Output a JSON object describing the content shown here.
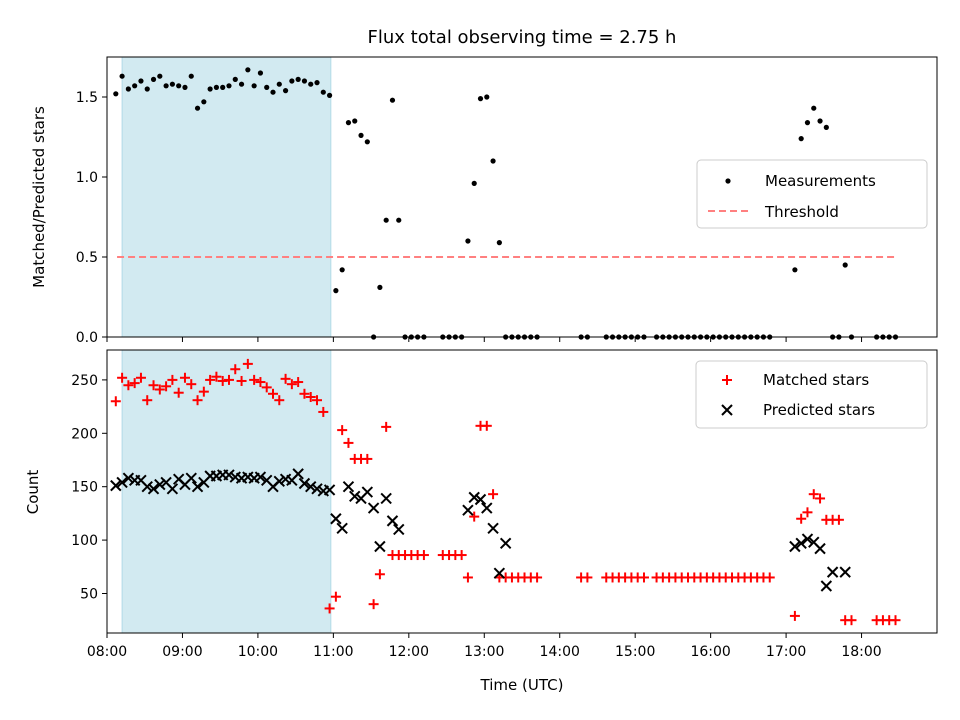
{
  "chart_data": [
    {
      "type": "scatter",
      "title": "Flux total observing time = 2.75 h",
      "ylabel": "Matched/Predicted stars",
      "xlabel": "",
      "xlim": [
        "08:00",
        "19:00"
      ],
      "ylim": [
        0,
        1.75
      ],
      "yticks": [
        "0.0",
        "0.5",
        "1.0",
        "1.5"
      ],
      "grid": false,
      "legend": "center-right",
      "shaded_span": {
        "start": "08:12",
        "end": "10:58",
        "color": "#add8e6"
      },
      "threshold": {
        "name": "Threshold",
        "value": 0.5,
        "start": "08:08",
        "end": "18:28",
        "color": "#ff8080"
      },
      "series": [
        {
          "name": "Measurements",
          "color": "#000000",
          "marker": "dot",
          "x": [
            "08:07",
            "08:12",
            "08:17",
            "08:22",
            "08:27",
            "08:32",
            "08:37",
            "08:42",
            "08:47",
            "08:52",
            "08:57",
            "09:02",
            "09:07",
            "09:12",
            "09:17",
            "09:22",
            "09:27",
            "09:32",
            "09:37",
            "09:42",
            "09:47",
            "09:52",
            "09:57",
            "10:02",
            "10:07",
            "10:12",
            "10:17",
            "10:22",
            "10:27",
            "10:32",
            "10:37",
            "10:42",
            "10:47",
            "10:52",
            "10:57",
            "11:02",
            "11:07",
            "11:12",
            "11:17",
            "11:22",
            "11:27",
            "11:32",
            "11:37",
            "11:42",
            "11:47",
            "11:52",
            "11:57",
            "12:02",
            "12:07",
            "12:12",
            "12:27",
            "12:32",
            "12:37",
            "12:42",
            "12:47",
            "12:52",
            "12:57",
            "13:02",
            "13:07",
            "13:12",
            "13:17",
            "13:22",
            "13:27",
            "13:32",
            "13:37",
            "13:42",
            "14:17",
            "14:22",
            "14:37",
            "14:42",
            "14:47",
            "14:52",
            "14:57",
            "15:02",
            "15:07",
            "15:17",
            "15:22",
            "15:27",
            "15:32",
            "15:37",
            "15:42",
            "15:47",
            "15:52",
            "15:57",
            "16:02",
            "16:07",
            "16:12",
            "16:17",
            "16:22",
            "16:27",
            "16:32",
            "16:37",
            "16:42",
            "16:47",
            "17:07",
            "17:12",
            "17:17",
            "17:22",
            "17:27",
            "17:32",
            "17:37",
            "17:42",
            "17:47",
            "17:52",
            "18:12",
            "18:17",
            "18:22",
            "18:27"
          ],
          "y": [
            1.52,
            1.63,
            1.55,
            1.57,
            1.6,
            1.55,
            1.61,
            1.63,
            1.57,
            1.58,
            1.57,
            1.56,
            1.63,
            1.43,
            1.47,
            1.55,
            1.56,
            1.56,
            1.57,
            1.61,
            1.58,
            1.67,
            1.57,
            1.65,
            1.56,
            1.53,
            1.58,
            1.54,
            1.6,
            1.61,
            1.6,
            1.58,
            1.59,
            1.53,
            1.51,
            0.29,
            0.42,
            1.34,
            1.35,
            1.26,
            1.22,
            0.0,
            0.31,
            0.73,
            1.48,
            0.73,
            0.0,
            0.0,
            0.0,
            0.0,
            0.0,
            0.0,
            0.0,
            0.0,
            0.6,
            0.96,
            1.49,
            1.5,
            1.1,
            0.59,
            0.0,
            0.0,
            0.0,
            0.0,
            0.0,
            0.0,
            0.0,
            0.0,
            0.0,
            0.0,
            0.0,
            0.0,
            0.0,
            0.0,
            0.0,
            0.0,
            0.0,
            0.0,
            0.0,
            0.0,
            0.0,
            0.0,
            0.0,
            0.0,
            0.0,
            0.0,
            0.0,
            0.0,
            0.0,
            0.0,
            0.0,
            0.0,
            0.0,
            0.0,
            0.42,
            1.24,
            1.34,
            1.43,
            1.35,
            1.31,
            0.0,
            0.0,
            0.45,
            0.0,
            0.0,
            0.0,
            0.0,
            0.0
          ]
        }
      ]
    },
    {
      "type": "scatter",
      "title": "",
      "ylabel": "Count",
      "xlabel": "Time (UTC)",
      "xlim": [
        "08:00",
        "19:00"
      ],
      "ylim": [
        13,
        278
      ],
      "xticks": [
        "08:00",
        "09:00",
        "10:00",
        "11:00",
        "12:00",
        "13:00",
        "14:00",
        "15:00",
        "16:00",
        "17:00",
        "18:00"
      ],
      "yticks": [
        "50",
        "100",
        "150",
        "200",
        "250"
      ],
      "grid": false,
      "legend": "top-right",
      "shaded_span": {
        "start": "08:12",
        "end": "10:58",
        "color": "#add8e6"
      },
      "series": [
        {
          "name": "Matched stars",
          "color": "#ff0000",
          "marker": "plus",
          "x": [
            "08:07",
            "08:12",
            "08:17",
            "08:22",
            "08:27",
            "08:32",
            "08:37",
            "08:42",
            "08:47",
            "08:52",
            "08:57",
            "09:02",
            "09:07",
            "09:12",
            "09:17",
            "09:22",
            "09:27",
            "09:32",
            "09:37",
            "09:42",
            "09:47",
            "09:52",
            "09:57",
            "10:02",
            "10:07",
            "10:12",
            "10:17",
            "10:22",
            "10:27",
            "10:32",
            "10:37",
            "10:42",
            "10:47",
            "10:52",
            "10:57",
            "11:02",
            "11:07",
            "11:12",
            "11:17",
            "11:22",
            "11:27",
            "11:32",
            "11:37",
            "11:42",
            "11:47",
            "11:52",
            "11:57",
            "12:02",
            "12:07",
            "12:12",
            "12:27",
            "12:32",
            "12:37",
            "12:42",
            "12:47",
            "12:52",
            "12:57",
            "13:02",
            "13:07",
            "13:12",
            "13:17",
            "13:22",
            "13:27",
            "13:32",
            "13:37",
            "13:42",
            "14:17",
            "14:22",
            "14:37",
            "14:42",
            "14:47",
            "14:52",
            "14:57",
            "15:02",
            "15:07",
            "15:17",
            "15:22",
            "15:27",
            "15:32",
            "15:37",
            "15:42",
            "15:47",
            "15:52",
            "15:57",
            "16:02",
            "16:07",
            "16:12",
            "16:17",
            "16:22",
            "16:27",
            "16:32",
            "16:37",
            "16:42",
            "16:47",
            "17:07",
            "17:12",
            "17:17",
            "17:22",
            "17:27",
            "17:32",
            "17:37",
            "17:42",
            "17:47",
            "17:52",
            "18:12",
            "18:17",
            "18:22",
            "18:27"
          ],
          "y": [
            230,
            252,
            245,
            247,
            252,
            231,
            245,
            241,
            244,
            250,
            238,
            252,
            246,
            231,
            239,
            250,
            253,
            249,
            250,
            260,
            249,
            265,
            250,
            248,
            243,
            237,
            231,
            251,
            246,
            248,
            237,
            234,
            231,
            220,
            36,
            47,
            203,
            191,
            176,
            176,
            176,
            40,
            68,
            206,
            86,
            86,
            86,
            86,
            86,
            86,
            86,
            86,
            86,
            86,
            65,
            122,
            207,
            207,
            143,
            65,
            65,
            65,
            65,
            65,
            65,
            65,
            65,
            65,
            65,
            65,
            65,
            65,
            65,
            65,
            65,
            65,
            65,
            65,
            65,
            65,
            65,
            65,
            65,
            65,
            65,
            65,
            65,
            65,
            65,
            65,
            65,
            65,
            65,
            65,
            29,
            120,
            126,
            143,
            139,
            119,
            119,
            119,
            25,
            25,
            25,
            25,
            25,
            25
          ]
        },
        {
          "name": "Predicted stars",
          "color": "#000000",
          "marker": "cross",
          "x": [
            "08:07",
            "08:12",
            "08:17",
            "08:22",
            "08:27",
            "08:32",
            "08:37",
            "08:42",
            "08:47",
            "08:52",
            "08:57",
            "09:02",
            "09:07",
            "09:12",
            "09:17",
            "09:22",
            "09:27",
            "09:32",
            "09:37",
            "09:42",
            "09:47",
            "09:52",
            "09:57",
            "10:02",
            "10:07",
            "10:12",
            "10:17",
            "10:22",
            "10:27",
            "10:32",
            "10:37",
            "10:42",
            "10:47",
            "10:52",
            "10:57",
            "11:02",
            "11:07",
            "11:12",
            "11:17",
            "11:22",
            "11:27",
            "11:32",
            "11:37",
            "11:42",
            "11:47",
            "11:52",
            "12:47",
            "12:52",
            "12:57",
            "13:02",
            "13:07",
            "13:12",
            "13:17",
            "17:07",
            "17:12",
            "17:17",
            "17:22",
            "17:27",
            "17:32",
            "17:37",
            "17:47"
          ],
          "y": [
            151,
            154,
            158,
            156,
            156,
            150,
            148,
            152,
            154,
            148,
            157,
            152,
            158,
            150,
            154,
            160,
            160,
            161,
            161,
            159,
            158,
            159,
            158,
            159,
            156,
            150,
            155,
            157,
            156,
            162,
            153,
            150,
            148,
            146,
            147,
            120,
            111,
            150,
            141,
            139,
            145,
            130,
            94,
            139,
            118,
            110,
            128,
            140,
            138,
            130,
            111,
            69,
            97,
            94,
            97,
            101,
            98,
            92,
            57,
            70,
            70
          ]
        }
      ]
    }
  ]
}
